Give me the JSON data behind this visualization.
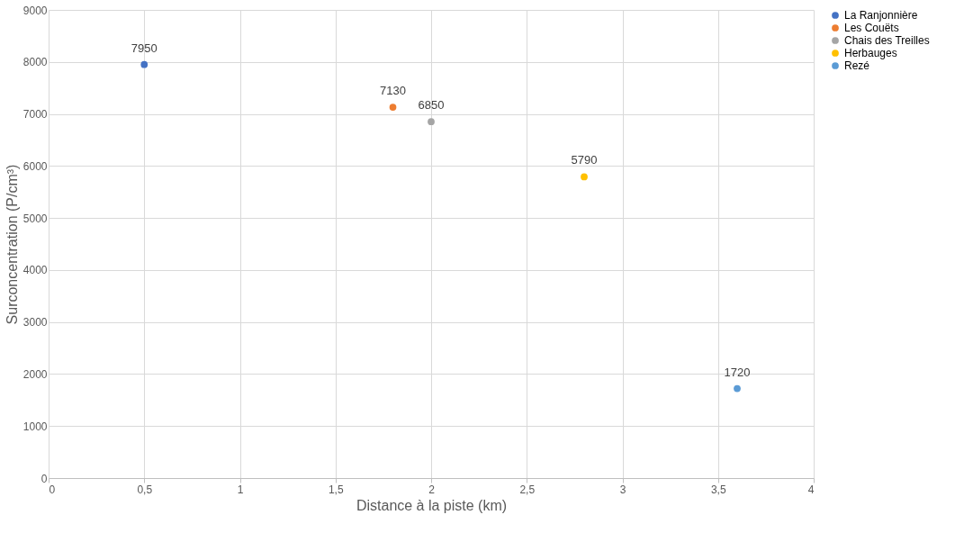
{
  "chart_data": {
    "type": "scatter",
    "xlabel": "Distance à la piste (km)",
    "ylabel": "Surconcentration (P/cm³)",
    "series": [
      {
        "name": "La Ranjonnière",
        "color": "#4472c4",
        "x": [
          0.5
        ],
        "values": [
          7950
        ]
      },
      {
        "name": "Les Couëts",
        "color": "#ed7d31",
        "x": [
          1.8
        ],
        "values": [
          7130
        ]
      },
      {
        "name": "Chais des Treilles",
        "color": "#a5a5a5",
        "x": [
          2.0
        ],
        "values": [
          6850
        ]
      },
      {
        "name": "Herbauges",
        "color": "#ffc000",
        "x": [
          2.8
        ],
        "values": [
          5790
        ]
      },
      {
        "name": "Rezé",
        "color": "#5b9bd5",
        "x": [
          3.6
        ],
        "values": [
          1720
        ]
      }
    ],
    "xlim": [
      0,
      4
    ],
    "xticks": [
      0,
      {
        "value": 0.5,
        "label": "0,5"
      },
      1,
      {
        "value": 1.5,
        "label": "1,5"
      },
      2,
      {
        "value": 2.5,
        "label": "2,5"
      },
      3,
      {
        "value": 3.5,
        "label": "3,5"
      },
      4
    ],
    "ylim": [
      0,
      9000
    ],
    "yticks": [
      0,
      1000,
      2000,
      3000,
      4000,
      5000,
      6000,
      7000,
      8000,
      9000
    ],
    "grid": true,
    "legend": "right",
    "marker": "circle",
    "data_labels": true
  }
}
